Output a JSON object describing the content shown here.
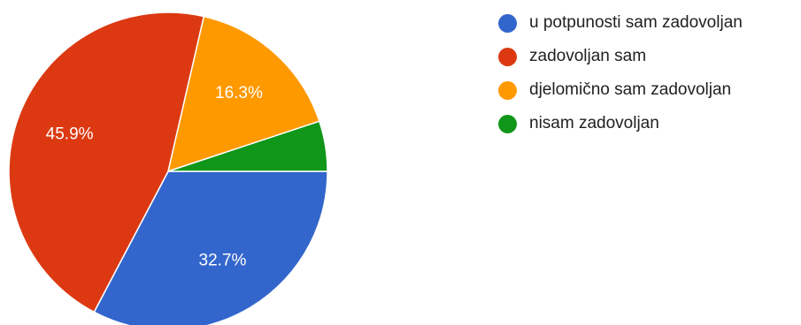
{
  "chart_data": {
    "type": "pie",
    "title": "",
    "legend_position": "right",
    "start_angle_deg": 90,
    "direction": "clockwise",
    "slices": [
      {
        "name": "u potpunosti sam zadovoljan",
        "value": 32.7,
        "label": "32.7%",
        "color": "#3366cc"
      },
      {
        "name": "zadovoljan sam",
        "value": 45.9,
        "label": "45.9%",
        "color": "#dc3912"
      },
      {
        "name": "djelomično sam zadovoljan",
        "value": 16.3,
        "label": "16.3%",
        "color": "#ff9900"
      },
      {
        "name": "nisam zadovoljan",
        "value": 5.1,
        "label": "",
        "color": "#109618"
      }
    ]
  }
}
